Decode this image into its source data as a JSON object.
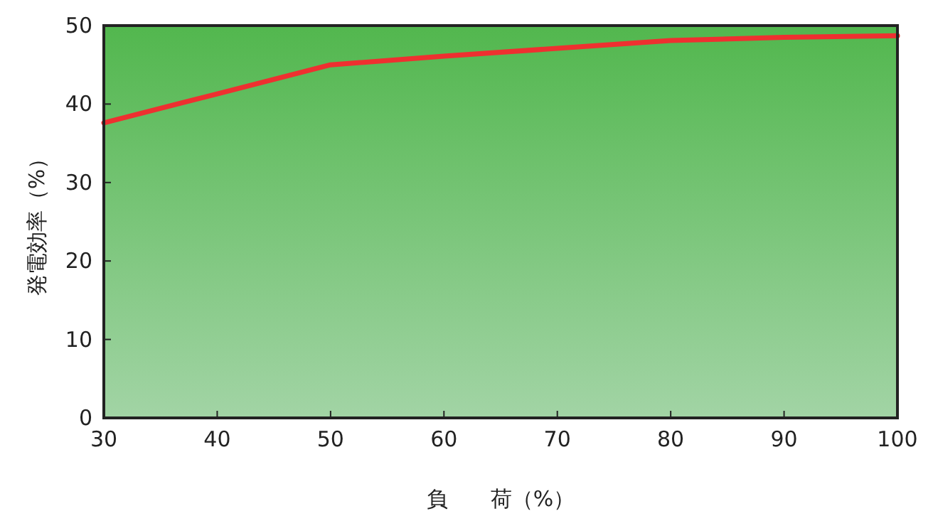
{
  "chart_data": {
    "type": "line",
    "xlabel": "負　　荷（%）",
    "ylabel": "発電効率（%）",
    "x": [
      30,
      40,
      50,
      60,
      70,
      80,
      90,
      100
    ],
    "series": [
      {
        "color": "#ee3030",
        "values": [
          37.6,
          41.3,
          45.0,
          46.1,
          47.1,
          48.1,
          48.5,
          48.7
        ]
      }
    ],
    "xlim": [
      30,
      100
    ],
    "xticks": [
      30,
      40,
      50,
      60,
      70,
      80,
      90,
      100
    ],
    "ylim": [
      0,
      50
    ],
    "yticks": [
      0,
      10,
      20,
      30,
      40,
      50
    ],
    "grid": false,
    "marker": "none",
    "line_style": "solid"
  }
}
